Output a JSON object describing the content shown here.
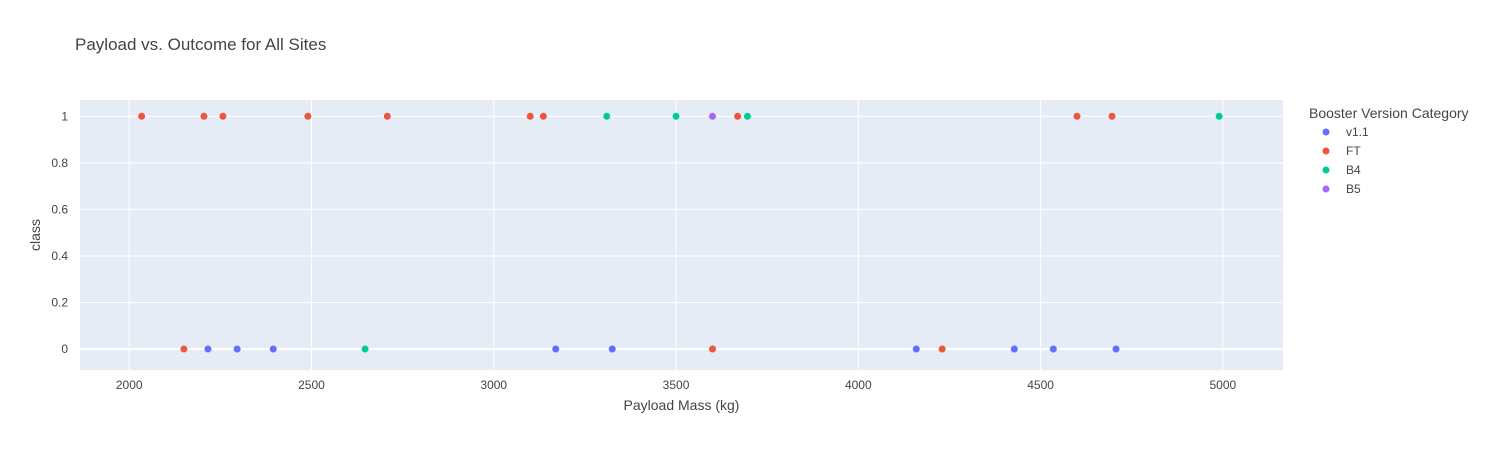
{
  "chart_data": {
    "type": "scatter",
    "title": "Payload vs. Outcome for All Sites",
    "xlabel": "Payload Mass (kg)",
    "ylabel": "class",
    "xlim": [
      1865,
      5165
    ],
    "ylim": [
      -0.09,
      1.07
    ],
    "xticks": [
      2000,
      2500,
      3000,
      3500,
      4000,
      4500,
      5000
    ],
    "yticks": [
      0,
      0.2,
      0.4,
      0.6,
      0.8,
      1
    ],
    "grid": true,
    "plot_background": "#E5ECF6",
    "legend": {
      "title": "Booster Version Category",
      "placement": "right"
    },
    "series": [
      {
        "name": "v1.1",
        "color": "#636EFA",
        "points": [
          {
            "x": 2216,
            "y": 0
          },
          {
            "x": 2296,
            "y": 0
          },
          {
            "x": 2395,
            "y": 0
          },
          {
            "x": 3170,
            "y": 0
          },
          {
            "x": 3325,
            "y": 0
          },
          {
            "x": 4159,
            "y": 0
          },
          {
            "x": 4428,
            "y": 0
          },
          {
            "x": 4535,
            "y": 0
          },
          {
            "x": 4707,
            "y": 0
          }
        ]
      },
      {
        "name": "FT",
        "color": "#EF553B",
        "points": [
          {
            "x": 2034,
            "y": 1
          },
          {
            "x": 2205,
            "y": 1
          },
          {
            "x": 2257,
            "y": 1
          },
          {
            "x": 2490,
            "y": 1
          },
          {
            "x": 2708,
            "y": 1
          },
          {
            "x": 3100,
            "y": 1
          },
          {
            "x": 3136,
            "y": 1
          },
          {
            "x": 3669,
            "y": 1
          },
          {
            "x": 4600,
            "y": 1
          },
          {
            "x": 4696,
            "y": 1
          },
          {
            "x": 2150,
            "y": 0
          },
          {
            "x": 3600,
            "y": 0
          },
          {
            "x": 4230,
            "y": 0
          }
        ]
      },
      {
        "name": "B4",
        "color": "#00CC96",
        "points": [
          {
            "x": 3310,
            "y": 1
          },
          {
            "x": 3500,
            "y": 1
          },
          {
            "x": 3696,
            "y": 1
          },
          {
            "x": 4990,
            "y": 1
          },
          {
            "x": 2647,
            "y": 0
          }
        ]
      },
      {
        "name": "B5",
        "color": "#AB63FA",
        "points": [
          {
            "x": 3600,
            "y": 1
          }
        ]
      }
    ]
  }
}
